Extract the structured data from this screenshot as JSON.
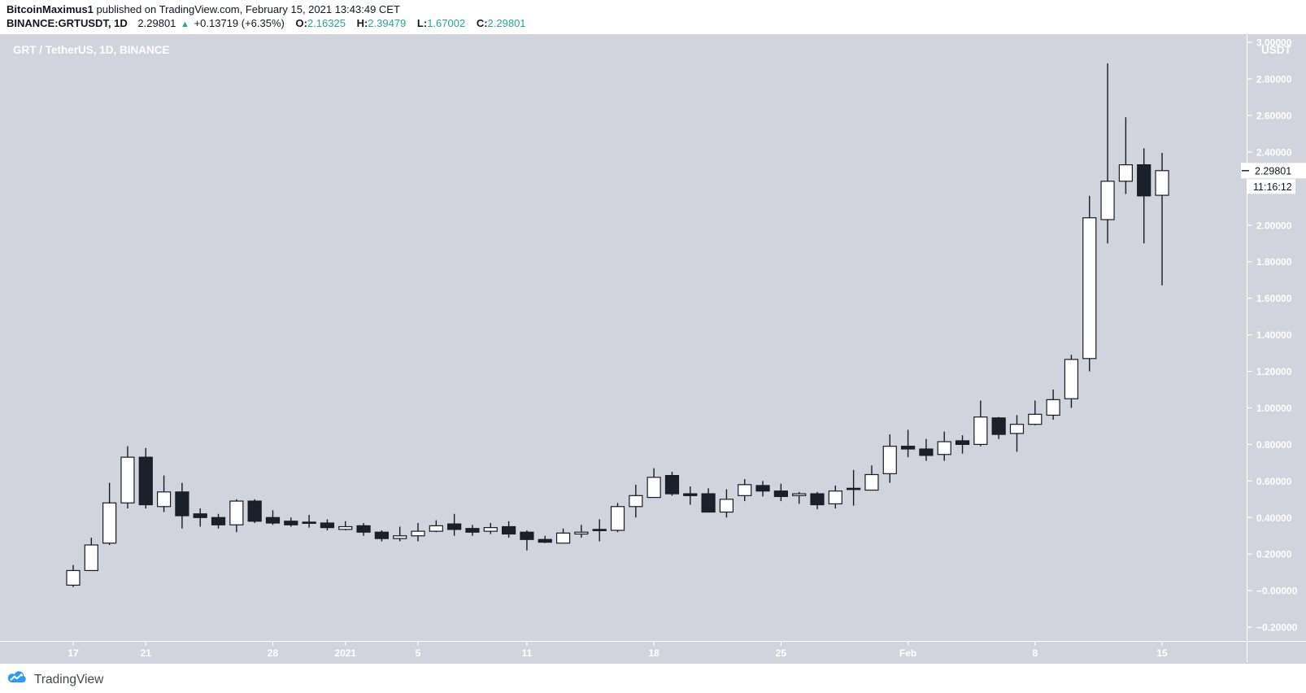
{
  "header": {
    "author": "BitcoinMaximus1",
    "publish_info": " published on TradingView.com, February 15, 2021 13:43:49 CET",
    "symbol": "BINANCE:GRTUSDT, 1D",
    "last_price": "2.29801",
    "direction_icon": "▲",
    "change": "+0.13719 (+6.35%)",
    "ohlc": [
      {
        "label": "O:",
        "value": "2.16325"
      },
      {
        "label": "H:",
        "value": "2.39479"
      },
      {
        "label": "L:",
        "value": "1.67002"
      },
      {
        "label": "C:",
        "value": "2.29801"
      }
    ]
  },
  "footer": {
    "brand": "TradingView"
  },
  "colors": {
    "teal": "#26a69a",
    "dark": "#131722",
    "chart_bg": "#d1d4dc",
    "bull": "#ffffff",
    "bear": "#1b202d",
    "outline": "#161b26",
    "axis_text": "#ffffff",
    "logo_blue": "#2d9bf0"
  },
  "chart_data": {
    "type": "candlestick",
    "title": "GRT / TetherUS, 1D, BINANCE",
    "pair": "GRT/USDT",
    "interval": "1D",
    "exchange": "BINANCE",
    "grid": false,
    "price_axis": {
      "unit": "USDT",
      "range": [
        -0.31,
        3.08
      ],
      "ticks": [
        {
          "price": 3.0,
          "label": "3.00000"
        },
        {
          "price": 2.8,
          "label": "2.80000"
        },
        {
          "price": 2.6,
          "label": "2.60000"
        },
        {
          "price": 2.4,
          "label": "2.40000"
        },
        {
          "price": 2.2,
          "label": "2.20000"
        },
        {
          "price": 2.0,
          "label": "2.00000"
        },
        {
          "price": 1.8,
          "label": "1.80000"
        },
        {
          "price": 1.6,
          "label": "1.60000"
        },
        {
          "price": 1.4,
          "label": "1.40000"
        },
        {
          "price": 1.2,
          "label": "1.20000"
        },
        {
          "price": 1.0,
          "label": "1.00000"
        },
        {
          "price": 0.8,
          "label": "0.80000"
        },
        {
          "price": 0.6,
          "label": "0.60000"
        },
        {
          "price": 0.4,
          "label": "0.40000"
        },
        {
          "price": 0.2,
          "label": "0.20000"
        },
        {
          "price": -0.0,
          "label": "−0.00000"
        },
        {
          "price": -0.2,
          "label": "−0.20000"
        }
      ]
    },
    "time_axis": {
      "ticks": [
        {
          "label": "17",
          "day": 0
        },
        {
          "label": "21",
          "day": 4
        },
        {
          "label": "28",
          "day": 11
        },
        {
          "label": "2021",
          "day": 15
        },
        {
          "label": "5",
          "day": 19
        },
        {
          "label": "11",
          "day": 25
        },
        {
          "label": "18",
          "day": 32
        },
        {
          "label": "25",
          "day": 39
        },
        {
          "label": "Feb",
          "day": 46
        },
        {
          "label": "8",
          "day": 53
        },
        {
          "label": "15",
          "day": 60
        }
      ]
    },
    "last_price": 2.29801,
    "last_price_label": "2.29801",
    "countdown": "11:16:12",
    "candles": [
      {
        "t": "Dec 17",
        "o": 0.03,
        "h": 0.14,
        "l": 0.02,
        "c": 0.11
      },
      {
        "t": "Dec 18",
        "o": 0.11,
        "h": 0.29,
        "l": 0.11,
        "c": 0.25
      },
      {
        "t": "Dec 19",
        "o": 0.26,
        "h": 0.59,
        "l": 0.25,
        "c": 0.48
      },
      {
        "t": "Dec 20",
        "o": 0.48,
        "h": 0.79,
        "l": 0.45,
        "c": 0.73
      },
      {
        "t": "Dec 21",
        "o": 0.73,
        "h": 0.78,
        "l": 0.45,
        "c": 0.47
      },
      {
        "t": "Dec 22",
        "o": 0.46,
        "h": 0.63,
        "l": 0.43,
        "c": 0.54
      },
      {
        "t": "Dec 23",
        "o": 0.54,
        "h": 0.59,
        "l": 0.34,
        "c": 0.41
      },
      {
        "t": "Dec 24",
        "o": 0.42,
        "h": 0.45,
        "l": 0.35,
        "c": 0.4
      },
      {
        "t": "Dec 25",
        "o": 0.4,
        "h": 0.42,
        "l": 0.34,
        "c": 0.36
      },
      {
        "t": "Dec 26",
        "o": 0.36,
        "h": 0.5,
        "l": 0.32,
        "c": 0.49
      },
      {
        "t": "Dec 27",
        "o": 0.49,
        "h": 0.5,
        "l": 0.37,
        "c": 0.38
      },
      {
        "t": "Dec 28",
        "o": 0.4,
        "h": 0.44,
        "l": 0.36,
        "c": 0.37
      },
      {
        "t": "Dec 29",
        "o": 0.38,
        "h": 0.4,
        "l": 0.35,
        "c": 0.36
      },
      {
        "t": "Dec 30",
        "o": 0.375,
        "h": 0.415,
        "l": 0.345,
        "c": 0.37
      },
      {
        "t": "Dec 31",
        "o": 0.37,
        "h": 0.39,
        "l": 0.33,
        "c": 0.345
      },
      {
        "t": "Jan 1",
        "o": 0.335,
        "h": 0.38,
        "l": 0.33,
        "c": 0.35
      },
      {
        "t": "Jan 2",
        "o": 0.355,
        "h": 0.37,
        "l": 0.3,
        "c": 0.32
      },
      {
        "t": "Jan 3",
        "o": 0.32,
        "h": 0.33,
        "l": 0.27,
        "c": 0.285
      },
      {
        "t": "Jan 4",
        "o": 0.285,
        "h": 0.35,
        "l": 0.27,
        "c": 0.3
      },
      {
        "t": "Jan 5",
        "o": 0.3,
        "h": 0.37,
        "l": 0.27,
        "c": 0.325
      },
      {
        "t": "Jan 6",
        "o": 0.325,
        "h": 0.385,
        "l": 0.32,
        "c": 0.355
      },
      {
        "t": "Jan 7",
        "o": 0.365,
        "h": 0.42,
        "l": 0.3,
        "c": 0.335
      },
      {
        "t": "Jan 8",
        "o": 0.34,
        "h": 0.36,
        "l": 0.3,
        "c": 0.32
      },
      {
        "t": "Jan 9",
        "o": 0.325,
        "h": 0.37,
        "l": 0.31,
        "c": 0.345
      },
      {
        "t": "Jan 10",
        "o": 0.35,
        "h": 0.38,
        "l": 0.29,
        "c": 0.31
      },
      {
        "t": "Jan 11",
        "o": 0.32,
        "h": 0.33,
        "l": 0.22,
        "c": 0.28
      },
      {
        "t": "Jan 12",
        "o": 0.28,
        "h": 0.3,
        "l": 0.26,
        "c": 0.265
      },
      {
        "t": "Jan 13",
        "o": 0.26,
        "h": 0.34,
        "l": 0.26,
        "c": 0.315
      },
      {
        "t": "Jan 14",
        "o": 0.31,
        "h": 0.36,
        "l": 0.29,
        "c": 0.32
      },
      {
        "t": "Jan 15",
        "o": 0.335,
        "h": 0.39,
        "l": 0.27,
        "c": 0.33
      },
      {
        "t": "Jan 16",
        "o": 0.33,
        "h": 0.48,
        "l": 0.32,
        "c": 0.46
      },
      {
        "t": "Jan 17",
        "o": 0.46,
        "h": 0.58,
        "l": 0.4,
        "c": 0.52
      },
      {
        "t": "Jan 18",
        "o": 0.51,
        "h": 0.67,
        "l": 0.51,
        "c": 0.62
      },
      {
        "t": "Jan 19",
        "o": 0.63,
        "h": 0.65,
        "l": 0.52,
        "c": 0.53
      },
      {
        "t": "Jan 20",
        "o": 0.53,
        "h": 0.57,
        "l": 0.47,
        "c": 0.52
      },
      {
        "t": "Jan 21",
        "o": 0.53,
        "h": 0.56,
        "l": 0.43,
        "c": 0.43
      },
      {
        "t": "Jan 22",
        "o": 0.43,
        "h": 0.555,
        "l": 0.4,
        "c": 0.5
      },
      {
        "t": "Jan 23",
        "o": 0.52,
        "h": 0.61,
        "l": 0.49,
        "c": 0.58
      },
      {
        "t": "Jan 24",
        "o": 0.575,
        "h": 0.6,
        "l": 0.515,
        "c": 0.545
      },
      {
        "t": "Jan 25",
        "o": 0.545,
        "h": 0.585,
        "l": 0.49,
        "c": 0.515
      },
      {
        "t": "Jan 26",
        "o": 0.52,
        "h": 0.54,
        "l": 0.475,
        "c": 0.53
      },
      {
        "t": "Jan 27",
        "o": 0.53,
        "h": 0.54,
        "l": 0.445,
        "c": 0.47
      },
      {
        "t": "Jan 28",
        "o": 0.475,
        "h": 0.575,
        "l": 0.45,
        "c": 0.545
      },
      {
        "t": "Jan 29",
        "o": 0.56,
        "h": 0.66,
        "l": 0.465,
        "c": 0.555
      },
      {
        "t": "Jan 30",
        "o": 0.55,
        "h": 0.685,
        "l": 0.55,
        "c": 0.635
      },
      {
        "t": "Jan 31",
        "o": 0.64,
        "h": 0.855,
        "l": 0.59,
        "c": 0.79
      },
      {
        "t": "Feb 1",
        "o": 0.79,
        "h": 0.88,
        "l": 0.73,
        "c": 0.775
      },
      {
        "t": "Feb 2",
        "o": 0.775,
        "h": 0.83,
        "l": 0.71,
        "c": 0.74
      },
      {
        "t": "Feb 3",
        "o": 0.745,
        "h": 0.87,
        "l": 0.71,
        "c": 0.815
      },
      {
        "t": "Feb 4",
        "o": 0.82,
        "h": 0.85,
        "l": 0.75,
        "c": 0.8
      },
      {
        "t": "Feb 5",
        "o": 0.8,
        "h": 1.04,
        "l": 0.79,
        "c": 0.95
      },
      {
        "t": "Feb 6",
        "o": 0.945,
        "h": 0.95,
        "l": 0.83,
        "c": 0.855
      },
      {
        "t": "Feb 7",
        "o": 0.86,
        "h": 0.96,
        "l": 0.76,
        "c": 0.91
      },
      {
        "t": "Feb 8",
        "o": 0.91,
        "h": 1.04,
        "l": 0.905,
        "c": 0.965
      },
      {
        "t": "Feb 9",
        "o": 0.96,
        "h": 1.1,
        "l": 0.935,
        "c": 1.045
      },
      {
        "t": "Feb 10",
        "o": 1.05,
        "h": 1.29,
        "l": 1.0,
        "c": 1.265
      },
      {
        "t": "Feb 11",
        "o": 1.27,
        "h": 2.16,
        "l": 1.2,
        "c": 2.04
      },
      {
        "t": "Feb 12",
        "o": 2.03,
        "h": 2.885,
        "l": 1.9,
        "c": 2.24
      },
      {
        "t": "Feb 13",
        "o": 2.24,
        "h": 2.59,
        "l": 2.17,
        "c": 2.33
      },
      {
        "t": "Feb 14",
        "o": 2.33,
        "h": 2.42,
        "l": 1.9,
        "c": 2.16
      },
      {
        "t": "Feb 15",
        "o": 2.16325,
        "h": 2.39479,
        "l": 1.67002,
        "c": 2.29801
      }
    ]
  }
}
